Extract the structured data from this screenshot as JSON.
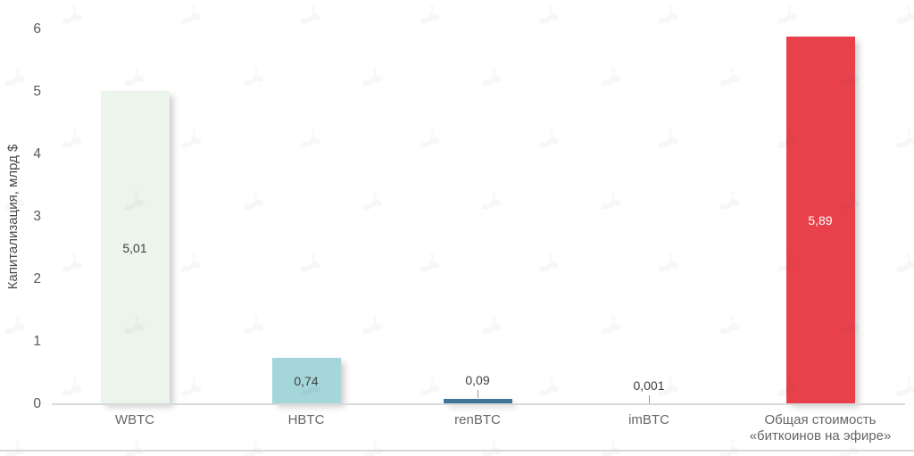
{
  "chart_data": {
    "type": "bar",
    "categories": [
      "WBTC",
      "HBTC",
      "renBTC",
      "imBTC",
      "Общая стоимость\n«биткоинов на эфире»"
    ],
    "values": [
      5.01,
      0.74,
      0.09,
      0.001,
      5.89
    ],
    "value_labels": [
      "5,01",
      "0,74",
      "0,09",
      "0,001",
      "5,89"
    ],
    "bar_colors": [
      "#ebf5ec",
      "#a5d6da",
      "#40759a",
      "#40759a",
      "#e8414b"
    ],
    "value_label_colors": [
      "#3f3f3f",
      "#3f3f3f",
      "#3f3f3f",
      "#3f3f3f",
      "#ffffff"
    ],
    "title": "",
    "xlabel": "",
    "ylabel": "Капитализация, млрд $",
    "yticks": [
      0,
      1,
      2,
      3,
      4,
      5,
      6
    ],
    "ylim": [
      0,
      6
    ],
    "grid": false,
    "legend": false,
    "decimal_separator": ",",
    "watermark_icon": "forklog-logo-watermark",
    "watermark_color": "rgba(70,70,70,0.045)",
    "axis_line_color": "#d9d9d9"
  }
}
